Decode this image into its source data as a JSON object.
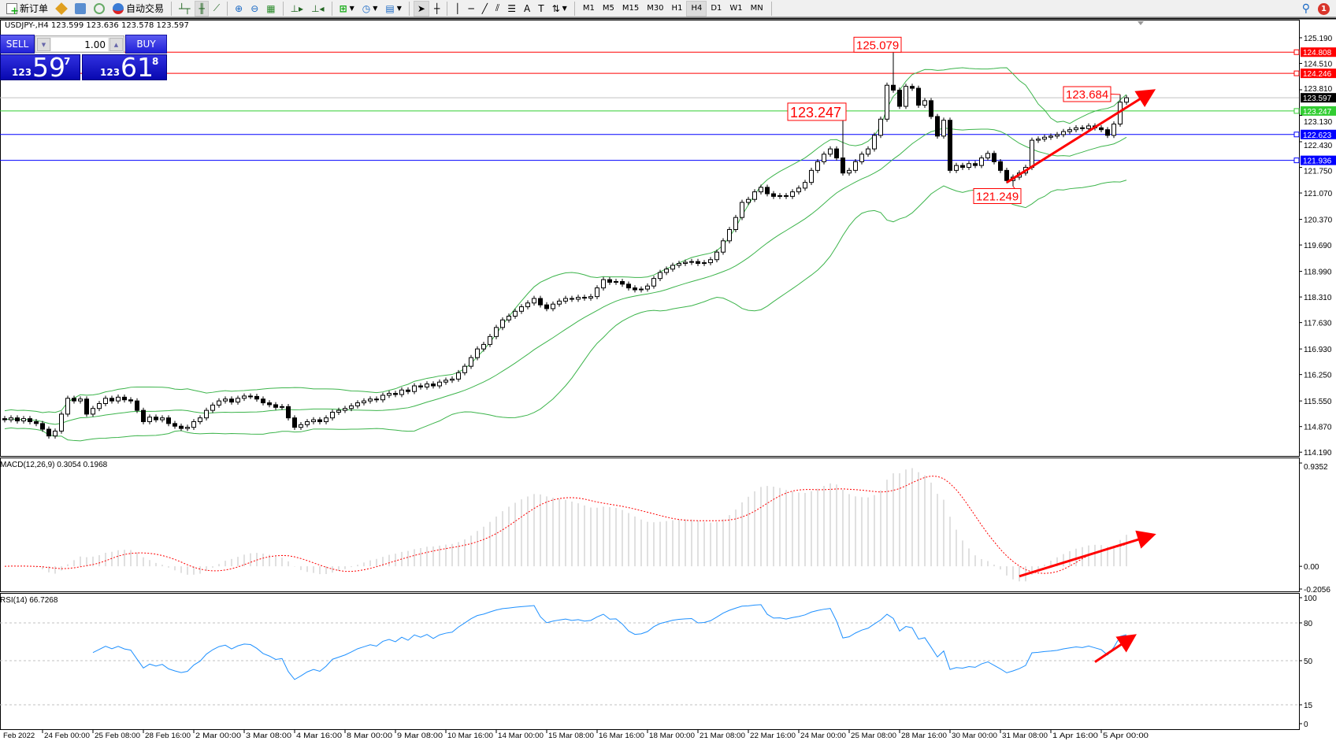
{
  "toolbar": {
    "new_order": "新订单",
    "auto_trading": "自动交易",
    "timeframes": [
      "M1",
      "M5",
      "M15",
      "M30",
      "H1",
      "H4",
      "D1",
      "W1",
      "MN"
    ],
    "active_timeframe": "H4",
    "notification_count": "1"
  },
  "chart_info": "USDJPY-,H4  123.599 123.636 123.578 123.597",
  "trade_panel": {
    "sell_label": "SELL",
    "buy_label": "BUY",
    "lot": "1.00",
    "sell_price": {
      "prefix": "123",
      "big": "59",
      "sup": "7"
    },
    "buy_price": {
      "prefix": "123",
      "big": "61",
      "sup": "8"
    }
  },
  "chart_data": {
    "type": "candlestick",
    "symbol": "USDJPY-",
    "timeframe": "H4",
    "ylim": [
      114.09,
      125.67
    ],
    "y_ticks": [
      "125.190",
      "124.510",
      "123.810",
      "123.130",
      "122.430",
      "121.750",
      "121.070",
      "120.370",
      "119.690",
      "118.990",
      "118.310",
      "117.630",
      "116.930",
      "116.250",
      "115.550",
      "114.870",
      "114.190"
    ],
    "x_labels": [
      "Feb 2022",
      "24 Feb 00:00",
      "25 Feb 08:00",
      "28 Feb 16:00",
      "2 Mar 00:00",
      "3 Mar 08:00",
      "4 Mar 16:00",
      "8 Mar 00:00",
      "9 Mar 08:00",
      "10 Mar 16:00",
      "14 Mar 00:00",
      "15 Mar 08:00",
      "16 Mar 16:00",
      "18 Mar 00:00",
      "21 Mar 08:00",
      "22 Mar 16:00",
      "24 Mar 00:00",
      "25 Mar 08:00",
      "28 Mar 16:00",
      "30 Mar 00:00",
      "31 Mar 08:00",
      "1 Apr 16:00",
      "5 Apr 00:00"
    ],
    "close": [
      115.05,
      115.1,
      115.02,
      115.08,
      115.0,
      114.95,
      114.8,
      114.62,
      114.75,
      115.2,
      115.62,
      115.55,
      115.6,
      115.2,
      115.35,
      115.48,
      115.62,
      115.55,
      115.65,
      115.58,
      115.55,
      115.3,
      115.0,
      115.12,
      115.05,
      115.1,
      114.95,
      114.88,
      114.82,
      114.85,
      115.0,
      115.1,
      115.3,
      115.44,
      115.55,
      115.6,
      115.52,
      115.62,
      115.68,
      115.67,
      115.6,
      115.5,
      115.45,
      115.38,
      115.4,
      115.1,
      114.85,
      114.92,
      115.0,
      115.05,
      115.0,
      115.1,
      115.25,
      115.3,
      115.35,
      115.42,
      115.5,
      115.55,
      115.6,
      115.58,
      115.7,
      115.75,
      115.72,
      115.84,
      115.8,
      115.95,
      115.92,
      116.0,
      115.95,
      116.05,
      116.1,
      116.13,
      116.3,
      116.47,
      116.7,
      116.93,
      117.05,
      117.26,
      117.5,
      117.7,
      117.8,
      117.93,
      118.05,
      118.15,
      118.27,
      118.1,
      118.0,
      118.12,
      118.2,
      118.27,
      118.25,
      118.3,
      118.28,
      118.32,
      118.55,
      118.77,
      118.7,
      118.72,
      118.65,
      118.55,
      118.5,
      118.52,
      118.6,
      118.8,
      118.96,
      119.05,
      119.15,
      119.2,
      119.23,
      119.25,
      119.2,
      119.22,
      119.3,
      119.5,
      119.8,
      120.1,
      120.42,
      120.82,
      120.9,
      121.1,
      121.22,
      121.05,
      120.98,
      121.0,
      120.98,
      121.1,
      121.2,
      121.35,
      121.67,
      121.9,
      122.1,
      122.24,
      122.0,
      121.6,
      121.67,
      121.9,
      122.1,
      122.24,
      122.6,
      123.03,
      123.93,
      123.8,
      123.37,
      123.9,
      123.85,
      123.4,
      123.52,
      123.1,
      122.58,
      123.0,
      121.67,
      121.8,
      121.75,
      121.85,
      121.8,
      122.0,
      122.12,
      121.9,
      121.67,
      121.4,
      121.49,
      121.6,
      121.75,
      122.47,
      122.5,
      122.55,
      122.58,
      122.62,
      122.7,
      122.75,
      122.8,
      122.78,
      122.85,
      122.8,
      122.75,
      122.6,
      122.9,
      123.48,
      123.597
    ],
    "h_lines": [
      {
        "price": "124.808",
        "color": "#ff0000"
      },
      {
        "price": "124.246",
        "color": "#ff0000"
      },
      {
        "price": "123.597",
        "color": "#c0c0c0",
        "label_bg": "#000000"
      },
      {
        "price": "123.247",
        "color": "#32cd32"
      },
      {
        "price": "122.623",
        "color": "#0000ff"
      },
      {
        "price": "121.936",
        "color": "#0000ff"
      }
    ],
    "annotations": [
      {
        "text": "125.079",
        "bar": 141,
        "price": 125.079,
        "big": false
      },
      {
        "text": "123.247",
        "bar": 133,
        "price": 123.247,
        "big": true
      },
      {
        "text": "121.249",
        "bar": 160,
        "price": 121.249,
        "big": false
      },
      {
        "text": "123.684",
        "bar": 177,
        "price": 123.684,
        "big": false
      }
    ],
    "trend_arrow": {
      "from": {
        "bar": 159,
        "price": 121.35
      },
      "to": {
        "bar": 182,
        "price": 123.76
      }
    },
    "indicators": {
      "bollinger": {
        "period": 20,
        "deviation": 2,
        "color": "#3cb44b"
      },
      "macd": {
        "label": "MACD(12,26,9) 0.3054 0.1968",
        "ylim": [
          -0.2056,
          0.9352
        ],
        "ticks": [
          "0.9352",
          "0.00",
          "-0.2056"
        ],
        "hist_color": "#c0c0c0",
        "signal_color": "#ff0000",
        "trend_arrow": {
          "from": {
            "bar": 161,
            "value": -0.09
          },
          "to": {
            "bar": 182,
            "value": 0.28
          }
        }
      },
      "rsi": {
        "label": "RSI(14) 66.7268",
        "ylim": [
          0,
          100
        ],
        "ticks": [
          "100",
          "80",
          "50",
          "15",
          "0"
        ],
        "levels": [
          80,
          50,
          15
        ],
        "color": "#1e90ff",
        "trend_arrow": {
          "from": {
            "bar": 173,
            "value": 49
          },
          "to": {
            "bar": 179,
            "value": 69
          }
        }
      }
    }
  }
}
